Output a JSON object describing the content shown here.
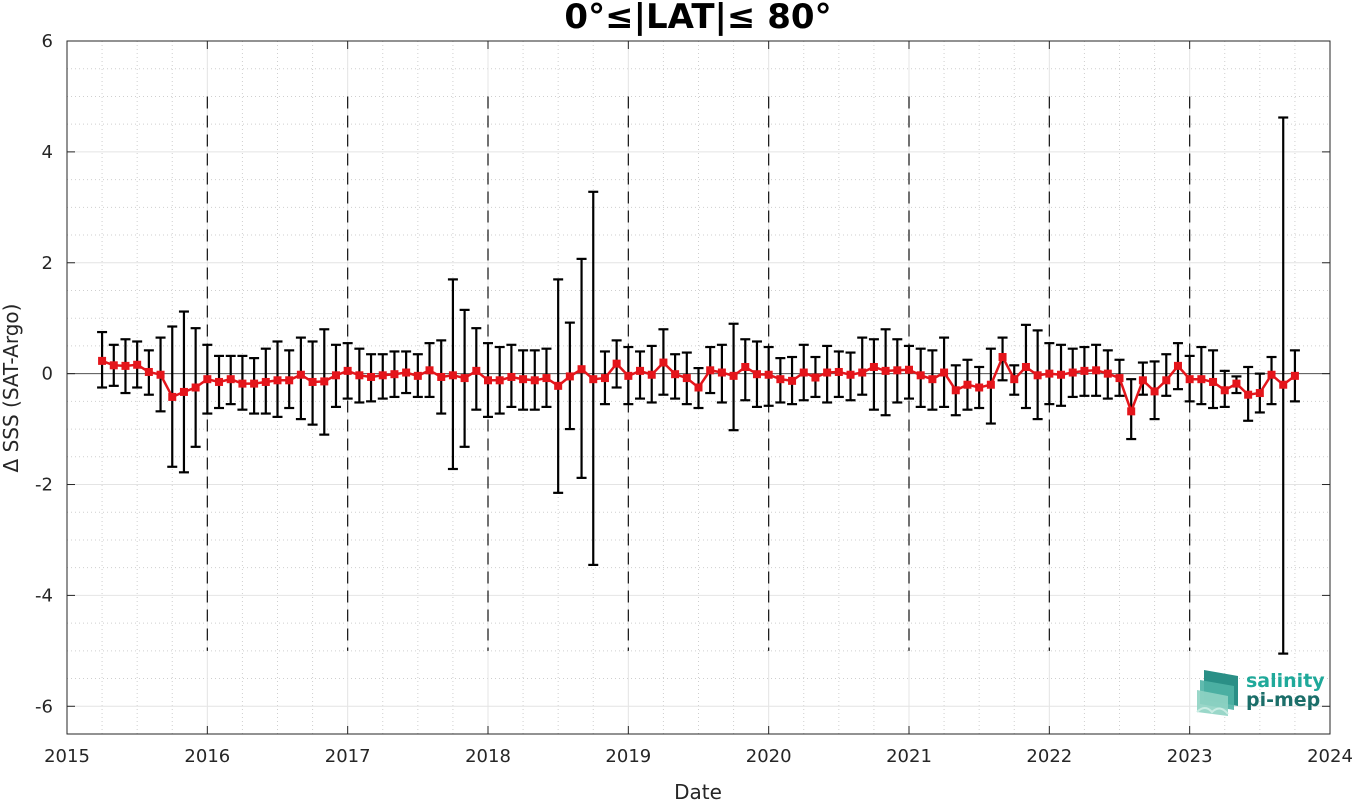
{
  "chart_data": {
    "type": "line",
    "title": "0°≤|LAT|≤ 80°",
    "xlabel": "Date",
    "ylabel": "Δ SSS (SAT-Argo)",
    "xlim": [
      "2015-01-01",
      "2024-01-01"
    ],
    "ylim": [
      -6.5,
      6.0
    ],
    "x_ticks": [
      "2015",
      "2016",
      "2017",
      "2018",
      "2019",
      "2020",
      "2021",
      "2022",
      "2023",
      "2024"
    ],
    "y_ticks": [
      "-6",
      "-4",
      "-2",
      "0",
      "2",
      "4",
      "6"
    ],
    "grid": true,
    "year_boundary_lines": [
      "2016",
      "2017",
      "2018",
      "2019",
      "2020",
      "2021",
      "2022",
      "2023"
    ],
    "series": [
      {
        "color": "#e4151b",
        "marker": "square",
        "x": [
          "2015-04",
          "2015-05",
          "2015-06",
          "2015-07",
          "2015-08",
          "2015-09",
          "2015-10",
          "2015-11",
          "2015-12",
          "2016-01",
          "2016-02",
          "2016-03",
          "2016-04",
          "2016-05",
          "2016-06",
          "2016-07",
          "2016-08",
          "2016-09",
          "2016-10",
          "2016-11",
          "2016-12",
          "2017-01",
          "2017-02",
          "2017-03",
          "2017-04",
          "2017-05",
          "2017-06",
          "2017-07",
          "2017-08",
          "2017-09",
          "2017-10",
          "2017-11",
          "2017-12",
          "2018-01",
          "2018-02",
          "2018-03",
          "2018-04",
          "2018-05",
          "2018-06",
          "2018-07",
          "2018-08",
          "2018-09",
          "2018-10",
          "2018-11",
          "2018-12",
          "2019-01",
          "2019-02",
          "2019-03",
          "2019-04",
          "2019-05",
          "2019-06",
          "2019-07",
          "2019-08",
          "2019-09",
          "2019-10",
          "2019-11",
          "2019-12",
          "2020-01",
          "2020-02",
          "2020-03",
          "2020-04",
          "2020-05",
          "2020-06",
          "2020-07",
          "2020-08",
          "2020-09",
          "2020-10",
          "2020-11",
          "2020-12",
          "2021-01",
          "2021-02",
          "2021-03",
          "2021-04",
          "2021-05",
          "2021-06",
          "2021-07",
          "2021-08",
          "2021-09",
          "2021-10",
          "2021-11",
          "2021-12",
          "2022-01",
          "2022-02",
          "2022-03",
          "2022-04",
          "2022-05",
          "2022-06",
          "2022-07",
          "2022-08",
          "2022-09",
          "2022-10",
          "2022-11",
          "2022-12",
          "2023-01",
          "2023-02",
          "2023-03",
          "2023-04",
          "2023-05",
          "2023-06",
          "2023-07",
          "2023-08",
          "2023-09",
          "2023-10"
        ],
        "y": [
          0.23,
          0.15,
          0.14,
          0.16,
          0.03,
          -0.02,
          -0.42,
          -0.33,
          -0.25,
          -0.1,
          -0.15,
          -0.1,
          -0.18,
          -0.18,
          -0.15,
          -0.12,
          -0.12,
          -0.02,
          -0.15,
          -0.14,
          -0.03,
          0.05,
          -0.03,
          -0.06,
          -0.03,
          -0.01,
          0.02,
          -0.04,
          0.06,
          -0.06,
          -0.03,
          -0.08,
          0.05,
          -0.12,
          -0.12,
          -0.06,
          -0.1,
          -0.12,
          -0.08,
          -0.22,
          -0.05,
          0.08,
          -0.1,
          -0.08,
          0.18,
          -0.04,
          0.05,
          -0.02,
          0.2,
          -0.01,
          -0.08,
          -0.25,
          0.06,
          0.02,
          -0.04,
          0.12,
          -0.01,
          -0.02,
          -0.1,
          -0.13,
          0.02,
          -0.07,
          0.02,
          0.03,
          -0.02,
          0.02,
          0.12,
          0.05,
          0.06,
          0.07,
          -0.03,
          -0.1,
          0.02,
          -0.3,
          -0.2,
          -0.25,
          -0.2,
          0.3,
          -0.1,
          0.12,
          -0.03,
          0.0,
          -0.02,
          0.02,
          0.05,
          0.06,
          0.0,
          -0.08,
          -0.68,
          -0.12,
          -0.32,
          -0.12,
          0.14,
          -0.1,
          -0.1,
          -0.15,
          -0.3,
          -0.18,
          -0.38,
          -0.35,
          -0.02,
          -0.2,
          -0.04
        ],
        "err_low": [
          -0.25,
          -0.22,
          -0.35,
          -0.25,
          -0.38,
          -0.68,
          -1.68,
          -1.78,
          -1.32,
          -0.72,
          -0.62,
          -0.55,
          -0.65,
          -0.72,
          -0.72,
          -0.78,
          -0.62,
          -0.82,
          -0.92,
          -1.1,
          -0.6,
          -0.45,
          -0.52,
          -0.5,
          -0.45,
          -0.42,
          -0.35,
          -0.42,
          -0.42,
          -0.72,
          -1.72,
          -1.32,
          -0.65,
          -0.78,
          -0.72,
          -0.6,
          -0.65,
          -0.65,
          -0.6,
          -2.15,
          -1.0,
          -1.88,
          -3.45,
          -0.55,
          -0.25,
          -0.55,
          -0.45,
          -0.52,
          -0.38,
          -0.45,
          -0.55,
          -0.62,
          -0.35,
          -0.52,
          -1.02,
          -0.48,
          -0.6,
          -0.58,
          -0.52,
          -0.55,
          -0.48,
          -0.42,
          -0.52,
          -0.42,
          -0.48,
          -0.38,
          -0.65,
          -0.75,
          -0.52,
          -0.45,
          -0.6,
          -0.65,
          -0.6,
          -0.75,
          -0.65,
          -0.62,
          -0.9,
          -0.12,
          -0.38,
          -0.62,
          -0.82,
          -0.55,
          -0.58,
          -0.42,
          -0.4,
          -0.4,
          -0.45,
          -0.4,
          -1.18,
          -0.38,
          -0.82,
          -0.4,
          -0.28,
          -0.5,
          -0.55,
          -0.62,
          -0.6,
          -0.35,
          -0.85,
          -0.7,
          -0.55,
          -5.05,
          -0.5
        ],
        "err_high": [
          0.75,
          0.52,
          0.62,
          0.58,
          0.42,
          0.65,
          0.85,
          1.12,
          0.82,
          0.52,
          0.32,
          0.32,
          0.32,
          0.28,
          0.45,
          0.58,
          0.42,
          0.65,
          0.58,
          0.8,
          0.52,
          0.55,
          0.45,
          0.35,
          0.35,
          0.4,
          0.4,
          0.35,
          0.55,
          0.6,
          1.7,
          1.15,
          0.82,
          0.55,
          0.48,
          0.52,
          0.42,
          0.42,
          0.45,
          1.7,
          0.92,
          2.07,
          3.28,
          0.4,
          0.6,
          0.48,
          0.4,
          0.5,
          0.8,
          0.35,
          0.38,
          0.1,
          0.48,
          0.52,
          0.9,
          0.62,
          0.58,
          0.48,
          0.28,
          0.3,
          0.52,
          0.3,
          0.5,
          0.4,
          0.38,
          0.65,
          0.62,
          0.8,
          0.62,
          0.5,
          0.45,
          0.42,
          0.65,
          0.15,
          0.25,
          0.12,
          0.45,
          0.65,
          0.15,
          0.88,
          0.78,
          0.55,
          0.52,
          0.45,
          0.48,
          0.52,
          0.42,
          0.25,
          -0.1,
          0.2,
          0.22,
          0.35,
          0.55,
          0.32,
          0.48,
          0.42,
          0.05,
          -0.05,
          0.12,
          0.0,
          0.3,
          4.62,
          0.42
        ]
      }
    ]
  },
  "logo": {
    "line1": "salinity",
    "line2": "pi-mep"
  }
}
